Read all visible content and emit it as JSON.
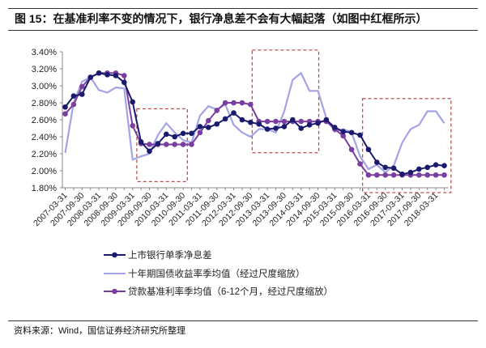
{
  "title": "图 15：在基准利率不变的情况下，银行净息差不会有大幅起落（如图中红框所示）",
  "source": "资料来源：Wind，国信证券经济研究所整理",
  "chart_data": {
    "type": "line",
    "ylim": [
      1.8,
      3.4
    ],
    "yticks": [
      "1.80%",
      "2.00%",
      "2.20%",
      "2.40%",
      "2.60%",
      "2.80%",
      "3.00%",
      "3.20%",
      "3.40%"
    ],
    "ytick_values": [
      1.8,
      2.0,
      2.2,
      2.4,
      2.6,
      2.8,
      3.0,
      3.2,
      3.4
    ],
    "x_labels": [
      "2007-03-31",
      "2007-09-30",
      "2008-03-31",
      "2008-09-30",
      "2009-03-31",
      "2009-09-30",
      "2010-03-31",
      "2010-09-30",
      "2011-03-31",
      "2011-09-30",
      "2012-03-31",
      "2012-09-30",
      "2013-03-31",
      "2013-09-30",
      "2014-03-31",
      "2014-09-30",
      "2015-03-31",
      "2015-09-30",
      "2016-03-31",
      "2016-09-30",
      "2017-03-31",
      "2017-09-30",
      "2018-03-31"
    ],
    "n_points": 46,
    "legend_position": "bottom",
    "colors": {
      "nim": "#1a1a6e",
      "bond": "#a3a3e6",
      "loan": "#7a3ea0",
      "box": "#c0504d"
    },
    "series": [
      {
        "name": "上市银行单季净息差",
        "key": "nim",
        "markers": true,
        "values": [
          2.75,
          2.88,
          2.9,
          3.1,
          3.15,
          3.13,
          3.12,
          3.04,
          2.81,
          2.34,
          2.23,
          2.32,
          2.43,
          2.4,
          2.44,
          2.44,
          2.52,
          2.51,
          2.55,
          2.61,
          2.68,
          2.6,
          2.57,
          2.55,
          2.49,
          2.5,
          2.52,
          2.6,
          2.5,
          2.54,
          2.56,
          2.6,
          2.51,
          2.46,
          2.45,
          2.42,
          2.25,
          2.1,
          2.04,
          2.03,
          1.96,
          1.98,
          2.02,
          2.04,
          2.07,
          2.06
        ]
      },
      {
        "name": "十年期国债收益率季均值（经过尺度缩放）",
        "key": "bond",
        "markers": false,
        "values": [
          2.21,
          2.8,
          3.05,
          3.1,
          2.95,
          2.92,
          2.98,
          2.97,
          2.13,
          2.17,
          2.2,
          2.42,
          2.56,
          2.45,
          2.36,
          2.33,
          2.65,
          2.76,
          2.72,
          2.78,
          2.54,
          2.45,
          2.4,
          2.49,
          2.49,
          2.45,
          2.7,
          3.07,
          3.15,
          2.94,
          2.94,
          2.62,
          2.46,
          2.49,
          2.45,
          2.17,
          2.02,
          2.07,
          1.98,
          2.06,
          2.33,
          2.49,
          2.54,
          2.7,
          2.7,
          2.56
        ]
      },
      {
        "name": "贷款基准利率季均值（6-12个月，经过尺度缩放）",
        "key": "loan",
        "markers": true,
        "values": [
          2.67,
          2.78,
          2.99,
          3.1,
          3.15,
          3.15,
          3.15,
          3.12,
          2.53,
          2.32,
          2.31,
          2.31,
          2.31,
          2.31,
          2.31,
          2.31,
          2.45,
          2.59,
          2.71,
          2.8,
          2.8,
          2.8,
          2.78,
          2.58,
          2.58,
          2.58,
          2.58,
          2.58,
          2.58,
          2.58,
          2.58,
          2.58,
          2.49,
          2.41,
          2.25,
          2.08,
          1.95,
          1.95,
          1.95,
          1.95,
          1.95,
          1.95,
          1.95,
          1.95,
          1.95,
          1.95
        ]
      }
    ],
    "highlight_boxes": [
      {
        "from_index": 8.5,
        "to_index": 14.5,
        "y_range": [
          1.93,
          2.73
        ]
      },
      {
        "from_index": 22.2,
        "to_index": 30.1,
        "y_range": [
          2.27,
          3.42
        ]
      },
      {
        "from_index": 35.3,
        "to_index": 45.8,
        "y_range": [
          1.8,
          2.85
        ]
      }
    ]
  }
}
